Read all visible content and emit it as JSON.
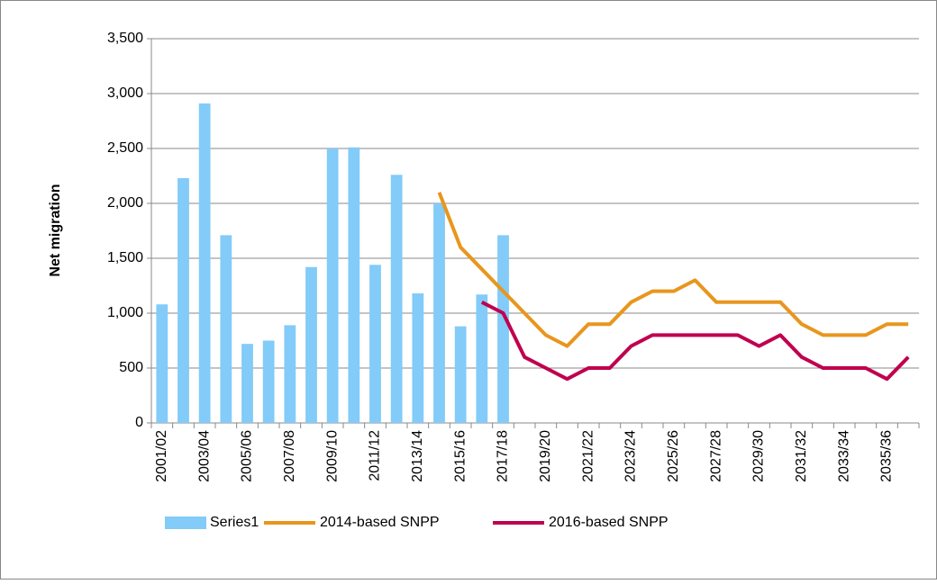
{
  "chart_data": {
    "type": "bar",
    "y_label": "Net migration",
    "categories": [
      "2001/02",
      null,
      "2003/04",
      null,
      "2005/06",
      null,
      "2007/08",
      null,
      "2009/10",
      null,
      "2011/12",
      null,
      "2013/14",
      null,
      "2015/16",
      null,
      "2017/18",
      null,
      "2019/20",
      null,
      "2021/22",
      null,
      "2023/24",
      null,
      "2025/26",
      null,
      "2027/28",
      null,
      "2029/30",
      null,
      "2031/32",
      null,
      "2033/34",
      null,
      "2035/36",
      null
    ],
    "series": [
      {
        "name": "Series1",
        "type": "bar",
        "color": "#83CBF8",
        "values": [
          1080,
          2230,
          2910,
          1710,
          720,
          750,
          890,
          1420,
          2500,
          2510,
          1440,
          2260,
          1180,
          2000,
          880,
          1170,
          1710,
          null,
          null,
          null,
          null,
          null,
          null,
          null,
          null,
          null,
          null,
          null,
          null,
          null,
          null,
          null,
          null,
          null,
          null,
          null
        ]
      },
      {
        "name": "2014-based SNPP",
        "type": "line",
        "color": "#E8961E",
        "values": [
          null,
          null,
          null,
          null,
          null,
          null,
          null,
          null,
          null,
          null,
          null,
          null,
          null,
          2100,
          1600,
          1400,
          1200,
          1000,
          800,
          700,
          900,
          900,
          1100,
          1200,
          1200,
          1300,
          1100,
          1100,
          1100,
          1100,
          900,
          800,
          800,
          800,
          900,
          900
        ]
      },
      {
        "name": "2016-based SNPP",
        "type": "line",
        "color": "#C0004F",
        "values": [
          null,
          null,
          null,
          null,
          null,
          null,
          null,
          null,
          null,
          null,
          null,
          null,
          null,
          null,
          null,
          1100,
          1000,
          600,
          500,
          400,
          500,
          500,
          700,
          800,
          800,
          800,
          800,
          800,
          700,
          800,
          600,
          500,
          500,
          500,
          400,
          600
        ]
      }
    ],
    "ylim": [
      0,
      3500
    ],
    "yticks": [
      0,
      500,
      1000,
      1500,
      2000,
      2500,
      3000,
      3500
    ],
    "ytick_labels": [
      "0",
      "500",
      "1,000",
      "1,500",
      "2,000",
      "2,500",
      "3,000",
      "3,500"
    ],
    "grid": true,
    "legend": "bottom"
  }
}
